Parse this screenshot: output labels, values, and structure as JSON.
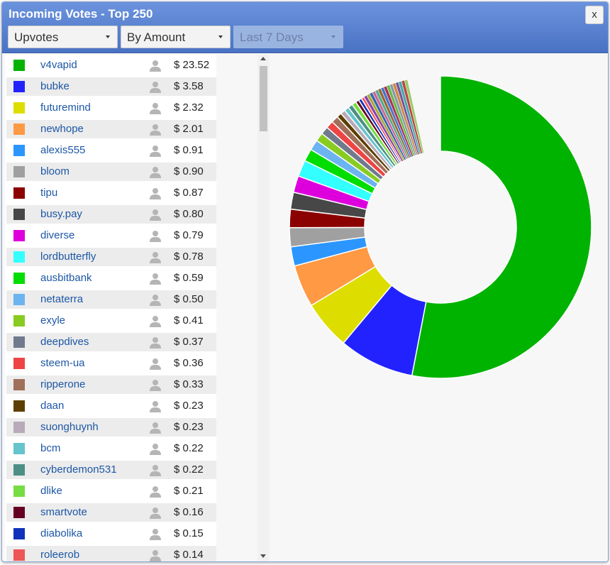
{
  "dialog": {
    "title": "Incoming Votes - Top 250",
    "close_label": "x",
    "filters": {
      "type": "Upvotes",
      "sort": "By Amount",
      "period": "Last 7 Days"
    }
  },
  "voters": [
    {
      "name": "v4vapid",
      "amount": "$ 23.52",
      "color": "#00b300"
    },
    {
      "name": "bubke",
      "amount": "$ 3.58",
      "color": "#2222ff"
    },
    {
      "name": "futuremind",
      "amount": "$ 2.32",
      "color": "#dddd00"
    },
    {
      "name": "newhope",
      "amount": "$ 2.01",
      "color": "#ff9944"
    },
    {
      "name": "alexis555",
      "amount": "$ 0.91",
      "color": "#2b96ff"
    },
    {
      "name": "bloom",
      "amount": "$ 0.90",
      "color": "#a0a0a0"
    },
    {
      "name": "tipu",
      "amount": "$ 0.87",
      "color": "#8b0000"
    },
    {
      "name": "busy.pay",
      "amount": "$ 0.80",
      "color": "#474747"
    },
    {
      "name": "diverse",
      "amount": "$ 0.79",
      "color": "#dd00dd"
    },
    {
      "name": "lordbutterfly",
      "amount": "$ 0.78",
      "color": "#33ffff"
    },
    {
      "name": "ausbitbank",
      "amount": "$ 0.59",
      "color": "#00dd00"
    },
    {
      "name": "netaterra",
      "amount": "$ 0.50",
      "color": "#6bb4f0"
    },
    {
      "name": "exyle",
      "amount": "$ 0.41",
      "color": "#88cc22"
    },
    {
      "name": "deepdives",
      "amount": "$ 0.37",
      "color": "#707a8c"
    },
    {
      "name": "steem-ua",
      "amount": "$ 0.36",
      "color": "#ee4444"
    },
    {
      "name": "ripperone",
      "amount": "$ 0.33",
      "color": "#a0705a"
    },
    {
      "name": "daan",
      "amount": "$ 0.23",
      "color": "#5c3f00"
    },
    {
      "name": "suonghuynh",
      "amount": "$ 0.23",
      "color": "#b8aab8"
    },
    {
      "name": "bcm",
      "amount": "$ 0.22",
      "color": "#66c4cc"
    },
    {
      "name": "cyberdemon531",
      "amount": "$ 0.22",
      "color": "#4d8f85"
    },
    {
      "name": "dlike",
      "amount": "$ 0.21",
      "color": "#77dd44"
    },
    {
      "name": "smartvote",
      "amount": "$ 0.16",
      "color": "#660022"
    },
    {
      "name": "diabolika",
      "amount": "$ 0.15",
      "color": "#1133bb"
    },
    {
      "name": "roleerob",
      "amount": "$ 0.14",
      "color": "#ee5555"
    }
  ],
  "chart_data": {
    "type": "pie",
    "style": "donut",
    "categories": [
      "v4vapid",
      "bubke",
      "futuremind",
      "newhope",
      "alexis555",
      "bloom",
      "tipu",
      "busy.pay",
      "diverse",
      "lordbutterfly",
      "ausbitbank",
      "netaterra",
      "exyle",
      "deepdives",
      "steem-ua",
      "ripperone",
      "daan",
      "suonghuynh",
      "bcm",
      "cyberdemon531",
      "dlike",
      "smartvote",
      "diabolika",
      "roleerob"
    ],
    "values": [
      23.52,
      3.58,
      2.32,
      2.01,
      0.91,
      0.9,
      0.87,
      0.8,
      0.79,
      0.78,
      0.59,
      0.5,
      0.41,
      0.37,
      0.36,
      0.33,
      0.23,
      0.23,
      0.22,
      0.22,
      0.21,
      0.16,
      0.15,
      0.14
    ],
    "colors": [
      "#00b300",
      "#2222ff",
      "#dddd00",
      "#ff9944",
      "#2b96ff",
      "#a0a0a0",
      "#8b0000",
      "#474747",
      "#dd00dd",
      "#33ffff",
      "#00dd00",
      "#6bb4f0",
      "#88cc22",
      "#707a8c",
      "#ee4444",
      "#a0705a",
      "#5c3f00",
      "#b8aab8",
      "#66c4cc",
      "#4d8f85",
      "#77dd44",
      "#660022",
      "#1133bb",
      "#ee5555"
    ],
    "remainder_colors": [
      "#8844aa",
      "#aaaa33",
      "#3366aa",
      "#cc6699",
      "#55aa88",
      "#996633",
      "#4477cc",
      "#aa3355",
      "#66bb44",
      "#8899aa",
      "#cc8844",
      "#775599",
      "#44aaaa",
      "#bb4444",
      "#99cc66"
    ],
    "remainder_value": 2.2
  }
}
